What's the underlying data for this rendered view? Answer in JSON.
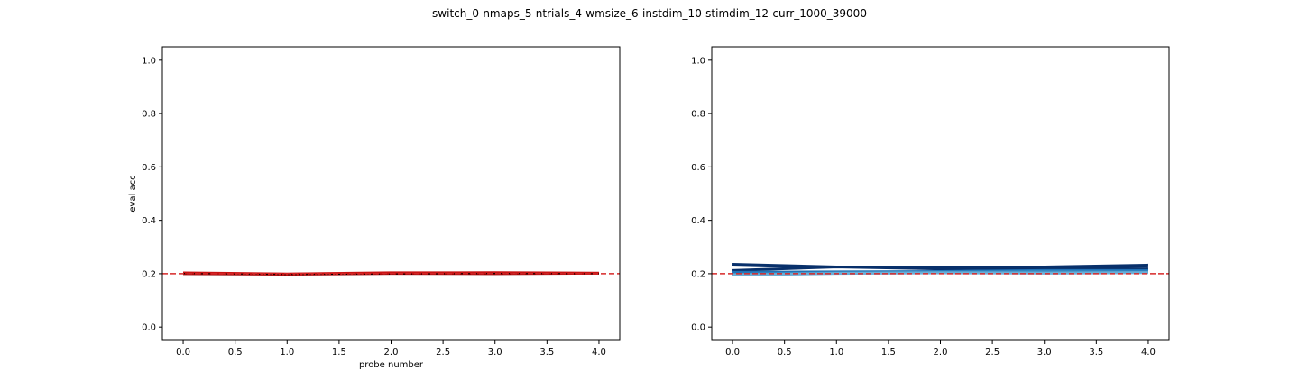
{
  "figure": {
    "title": "switch_0-nmaps_5-ntrials_4-wmsize_6-instdim_10-stimdim_12-curr_1000_39000"
  },
  "chart_data": [
    {
      "type": "line",
      "xlabel": "probe number",
      "ylabel": "eval acc",
      "xlim": [
        -0.2,
        4.2
      ],
      "ylim": [
        -0.05,
        1.05
      ],
      "xticks": [
        0.0,
        0.5,
        1.0,
        1.5,
        2.0,
        2.5,
        3.0,
        3.5,
        4.0
      ],
      "xtick_labels": [
        "0.0",
        "0.5",
        "1.0",
        "1.5",
        "2.0",
        "2.5",
        "3.0",
        "3.5",
        "4.0"
      ],
      "yticks": [
        0.0,
        0.2,
        0.4,
        0.6,
        0.8,
        1.0
      ],
      "ytick_labels": [
        "0.0",
        "0.2",
        "0.4",
        "0.6",
        "0.8",
        "1.0"
      ],
      "x": [
        0,
        1,
        2,
        3,
        4
      ],
      "reference_line": {
        "y": 0.2,
        "style": "dashed",
        "color": "#d62728"
      },
      "band": {
        "lower": [
          0.197,
          0.193,
          0.196,
          0.196,
          0.198
        ],
        "upper": [
          0.207,
          0.203,
          0.21,
          0.207,
          0.206
        ],
        "color": "#f4a0a0"
      },
      "series": [
        {
          "values": [
            0.2,
            0.198,
            0.201,
            0.2,
            0.202
          ],
          "color": "#8b0000",
          "width": 3
        },
        {
          "values": [
            0.203,
            0.199,
            0.203,
            0.204,
            0.202
          ],
          "color": "#c81414",
          "width": 3
        },
        {
          "values": [
            0.201,
            0.197,
            0.199,
            0.201,
            0.2
          ],
          "color": "#000000",
          "width": 1,
          "dash": "2,2"
        }
      ]
    },
    {
      "type": "line",
      "xlabel": "",
      "ylabel": "",
      "xlim": [
        -0.2,
        4.2
      ],
      "ylim": [
        -0.05,
        1.05
      ],
      "xticks": [
        0.0,
        0.5,
        1.0,
        1.5,
        2.0,
        2.5,
        3.0,
        3.5,
        4.0
      ],
      "xtick_labels": [
        "0.0",
        "0.5",
        "1.0",
        "1.5",
        "2.0",
        "2.5",
        "3.0",
        "3.5",
        "4.0"
      ],
      "yticks": [
        0.0,
        0.2,
        0.4,
        0.6,
        0.8,
        1.0
      ],
      "ytick_labels": [
        "0.0",
        "0.2",
        "0.4",
        "0.6",
        "0.8",
        "1.0"
      ],
      "x": [
        0,
        1,
        2,
        3,
        4
      ],
      "reference_line": {
        "y": 0.2,
        "style": "dashed",
        "color": "#d62728"
      },
      "series": [
        {
          "values": [
            0.235,
            0.225,
            0.225,
            0.225,
            0.232
          ],
          "color": "#08306b",
          "width": 3
        },
        {
          "values": [
            0.212,
            0.225,
            0.218,
            0.22,
            0.218
          ],
          "color": "#08306b",
          "width": 3
        },
        {
          "values": [
            0.205,
            0.207,
            0.208,
            0.212,
            0.212
          ],
          "color": "#2171b5",
          "width": 3
        },
        {
          "values": [
            0.198,
            0.203,
            0.205,
            0.207,
            0.206
          ],
          "color": "#4292c6",
          "width": 3
        },
        {
          "values": [
            0.195,
            0.201,
            0.203,
            0.202,
            0.204
          ],
          "color": "#6baed6",
          "width": 3
        }
      ]
    }
  ]
}
